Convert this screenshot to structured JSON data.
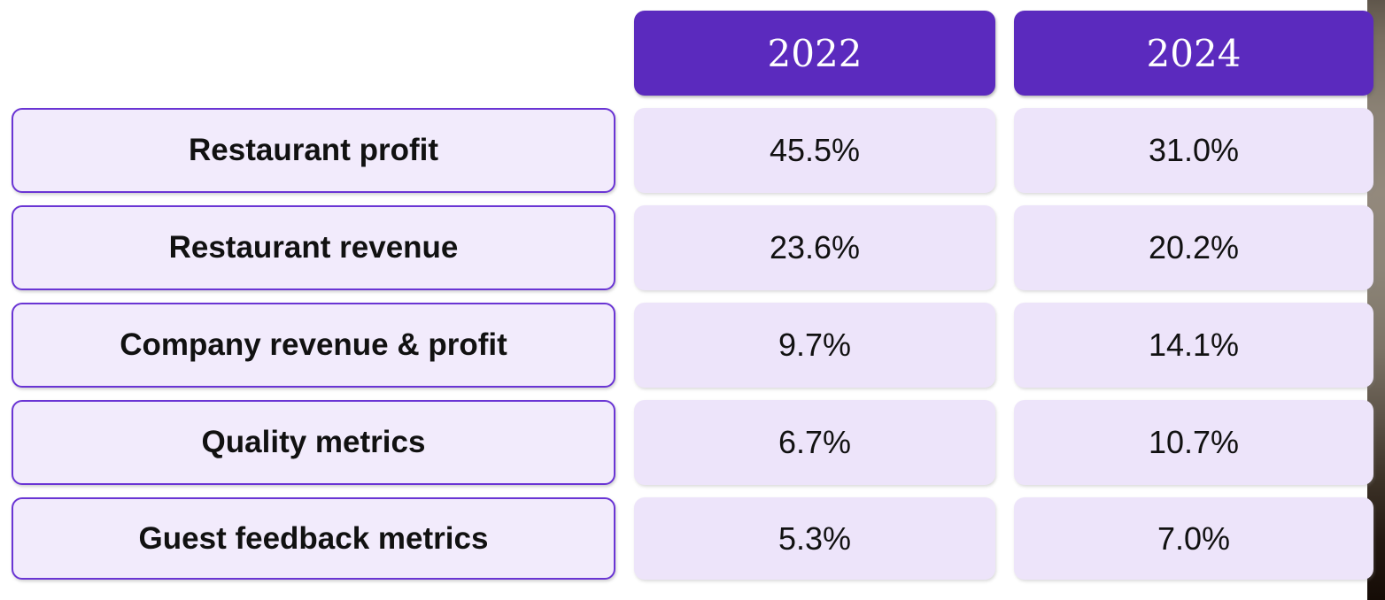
{
  "table": {
    "columns": [
      "2022",
      "2024"
    ],
    "rows": [
      {
        "label": "Restaurant profit",
        "values": [
          "45.5%",
          "31.0%"
        ]
      },
      {
        "label": "Restaurant revenue",
        "values": [
          "23.6%",
          "20.2%"
        ]
      },
      {
        "label": "Company revenue & profit",
        "values": [
          "9.7%",
          "14.1%"
        ]
      },
      {
        "label": "Quality metrics",
        "values": [
          "6.7%",
          "10.7%"
        ]
      },
      {
        "label": "Guest feedback metrics",
        "values": [
          "5.3%",
          "7.0%"
        ]
      }
    ]
  },
  "chart_data": {
    "type": "table",
    "title": "",
    "columns": [
      "2022",
      "2024"
    ],
    "categories": [
      "Restaurant profit",
      "Restaurant revenue",
      "Company revenue & profit",
      "Quality metrics",
      "Guest feedback metrics"
    ],
    "series": [
      {
        "name": "2022",
        "values": [
          45.5,
          23.6,
          9.7,
          6.7,
          5.3
        ]
      },
      {
        "name": "2024",
        "values": [
          31.0,
          20.2,
          14.1,
          10.7,
          7.0
        ]
      }
    ],
    "unit": "%"
  },
  "colors": {
    "header_bg": "#5b2abe",
    "header_text": "#ffffff",
    "label_cell_bg": "#f2ebfc",
    "label_cell_border": "#6a35d4",
    "value_cell_bg": "#ede4fa",
    "text": "#111111"
  }
}
